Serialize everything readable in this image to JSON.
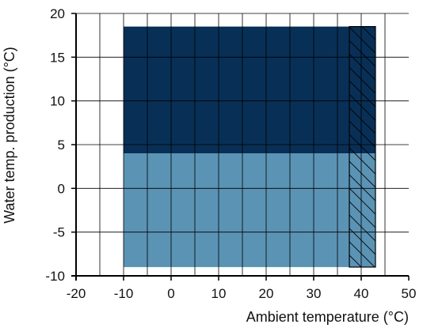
{
  "chart_data": {
    "type": "area",
    "xlabel": "Ambient temperature (°C)",
    "ylabel": "Water temp. production (°C)",
    "xlim": [
      -20,
      50
    ],
    "ylim": [
      -10,
      20
    ],
    "x_ticks": [
      -20,
      -10,
      0,
      10,
      20,
      30,
      40,
      50
    ],
    "y_ticks": [
      -10,
      -5,
      0,
      5,
      10,
      15,
      20
    ],
    "grid": true,
    "legend": "none",
    "regions": [
      {
        "x_range": [
          -10,
          43
        ],
        "y_range": [
          4,
          18.5
        ],
        "fill": "#083057",
        "pattern": "none"
      },
      {
        "x_range": [
          -10,
          43
        ],
        "y_range": [
          -9,
          4
        ],
        "fill": "#5b93b5",
        "pattern": "none"
      },
      {
        "x_range": [
          37.5,
          43
        ],
        "y_range": [
          -9,
          18.5
        ],
        "fill": "none",
        "pattern": "diagonal-hatch"
      }
    ],
    "colors": {
      "grid": "#000000",
      "axis": "#000000",
      "hatch": "#000000"
    }
  }
}
